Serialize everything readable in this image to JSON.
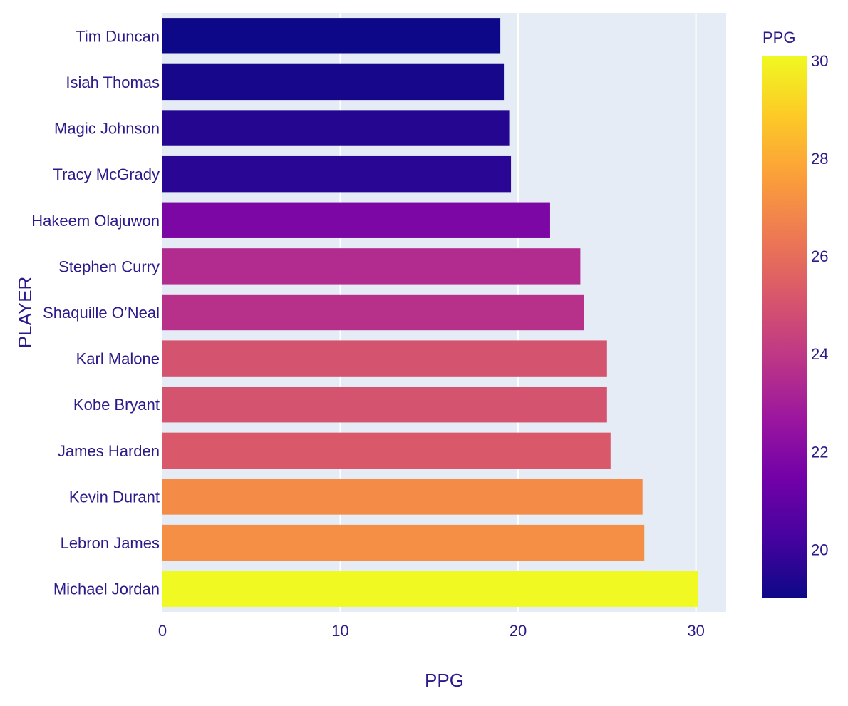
{
  "chart_data": {
    "type": "bar",
    "orientation": "horizontal",
    "categories": [
      "Tim Duncan",
      "Isiah Thomas",
      "Magic Johnson",
      "Tracy McGrady",
      "Hakeem Olajuwon",
      "Stephen Curry",
      "Shaquille O’Neal",
      "Karl Malone",
      "Kobe Bryant",
      "James Harden",
      "Kevin Durant",
      "Lebron James",
      "Michael Jordan"
    ],
    "values": [
      19.0,
      19.2,
      19.5,
      19.6,
      21.8,
      23.5,
      23.7,
      25.0,
      25.0,
      25.2,
      27.0,
      27.1,
      30.1
    ],
    "xlabel": "PPG",
    "ylabel": "PLAYER",
    "xlim": [
      0,
      31.7
    ],
    "xticks": [
      "0",
      "10",
      "20",
      "30"
    ],
    "grid": true,
    "colorbar": {
      "title": "PPG",
      "range": [
        19.0,
        30.1
      ],
      "ticks": [
        "20",
        "22",
        "24",
        "26",
        "28",
        "30"
      ],
      "colorscale": "plasma"
    },
    "colors": {
      "plot_bg": "#e5ecf6",
      "gridline": "#ffffff",
      "text": "#2a1a8a"
    }
  }
}
